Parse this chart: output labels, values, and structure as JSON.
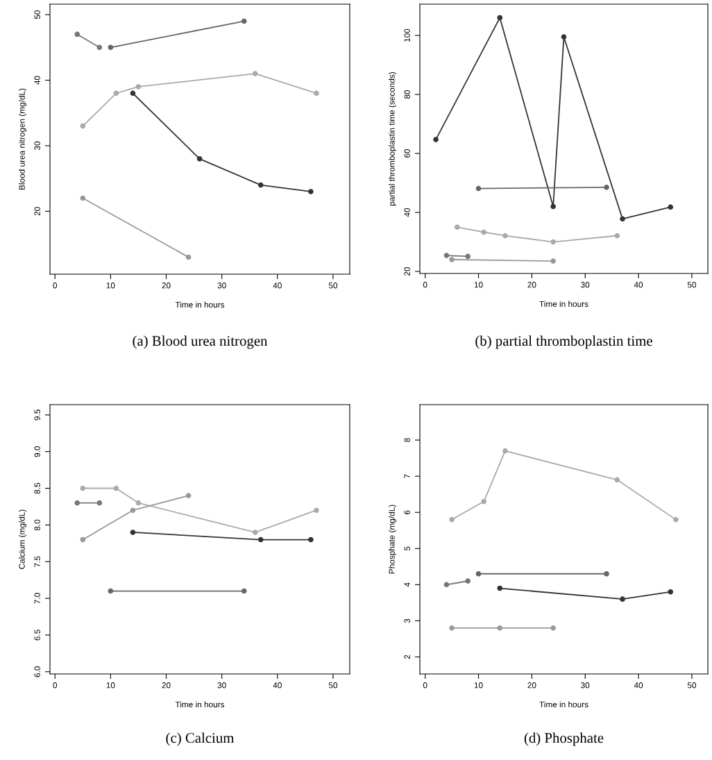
{
  "chart_data": [
    {
      "type": "line",
      "title": "(a) Blood urea nitrogen",
      "xlabel": "Time in hours",
      "ylabel": "Blood urea nitrogen (mg/dL)",
      "xlim": [
        -0.9,
        53
      ],
      "xticks": [
        0,
        10,
        20,
        30,
        40,
        50
      ],
      "ylim": [
        10.4,
        51.6
      ],
      "yticks": [
        20,
        30,
        40,
        50
      ],
      "grid": false,
      "legend": false,
      "marker": "circle",
      "line_style": "solid",
      "series": [
        {
          "color": "#333333",
          "x": [
            14,
            26,
            37,
            46
          ],
          "values": [
            38,
            28,
            24,
            23
          ]
        },
        {
          "color": "#777777",
          "x": [
            4,
            8
          ],
          "values": [
            47,
            45
          ]
        },
        {
          "color": "#666666",
          "x": [
            10,
            34
          ],
          "values": [
            45,
            49
          ]
        },
        {
          "color": "#aaaaaa",
          "x": [
            5,
            11,
            15,
            36,
            47
          ],
          "values": [
            33,
            38,
            39,
            41,
            38
          ]
        },
        {
          "color": "#999999",
          "x": [
            5,
            24
          ],
          "values": [
            22,
            13
          ]
        }
      ]
    },
    {
      "type": "line",
      "title": "(b) partial thromboplastin time",
      "xlabel": "Time in hours",
      "ylabel": "partial thromboplastin time (seconds)",
      "xlim": [
        -1,
        53
      ],
      "xticks": [
        0,
        10,
        20,
        30,
        40,
        50
      ],
      "ylim": [
        19.3,
        110.6
      ],
      "yticks": [
        20,
        40,
        60,
        80,
        100
      ],
      "grid": false,
      "legend": false,
      "marker": "circle",
      "line_style": "solid",
      "series": [
        {
          "color": "#333333",
          "x": [
            2,
            14,
            24,
            26,
            37,
            46
          ],
          "values": [
            64.7,
            106,
            42,
            99.5,
            37.8,
            41.8
          ]
        },
        {
          "color": "#666666",
          "x": [
            10,
            34
          ],
          "values": [
            48.1,
            48.5
          ]
        },
        {
          "color": "#aaaaaa",
          "x": [
            6,
            11,
            15,
            24,
            36
          ],
          "values": [
            35,
            33.3,
            32.1,
            30,
            32.1
          ]
        },
        {
          "color": "#777777",
          "x": [
            4,
            8
          ],
          "values": [
            25.4,
            25.1
          ]
        },
        {
          "color": "#999999",
          "x": [
            5,
            24
          ],
          "values": [
            24,
            23.5
          ]
        }
      ]
    },
    {
      "type": "line",
      "title": "(c) Calcium",
      "xlabel": "Time in hours",
      "ylabel": "Calcium (mg/dL)",
      "xlim": [
        -0.9,
        53
      ],
      "xticks": [
        0,
        10,
        20,
        30,
        40,
        50
      ],
      "ylim": [
        5.97,
        9.64
      ],
      "yticks": [
        {
          "value": 6,
          "label": "6.0"
        },
        6.5,
        {
          "value": 7,
          "label": "7.0"
        },
        7.5,
        {
          "value": 8,
          "label": "8.0"
        },
        8.5,
        {
          "value": 9,
          "label": "9.0"
        },
        9.5
      ],
      "grid": false,
      "legend": false,
      "marker": "circle",
      "line_style": "solid",
      "series": [
        {
          "color": "#aaaaaa",
          "x": [
            5,
            11,
            15,
            36,
            47
          ],
          "values": [
            8.5,
            8.5,
            8.3,
            7.9,
            8.2
          ]
        },
        {
          "color": "#777777",
          "x": [
            4,
            8
          ],
          "values": [
            8.3,
            8.3
          ]
        },
        {
          "color": "#999999",
          "x": [
            5,
            14,
            24
          ],
          "values": [
            7.8,
            8.2,
            8.4
          ]
        },
        {
          "color": "#333333",
          "x": [
            14,
            37,
            46
          ],
          "values": [
            7.9,
            7.8,
            7.8
          ]
        },
        {
          "color": "#666666",
          "x": [
            10,
            34
          ],
          "values": [
            7.1,
            7.1
          ]
        }
      ]
    },
    {
      "type": "line",
      "title": "(d) Phosphate",
      "xlabel": "Time in hours",
      "ylabel": "Phosphate (mg/dL)",
      "xlim": [
        -1,
        53
      ],
      "xticks": [
        0,
        10,
        20,
        30,
        40,
        50
      ],
      "ylim": [
        1.53,
        8.98
      ],
      "yticks": [
        2,
        3,
        4,
        5,
        6,
        7,
        8
      ],
      "grid": false,
      "legend": false,
      "marker": "circle",
      "line_style": "solid",
      "series": [
        {
          "color": "#aaaaaa",
          "x": [
            5,
            11,
            15,
            36,
            47
          ],
          "values": [
            5.8,
            6.3,
            7.7,
            6.9,
            5.8
          ]
        },
        {
          "color": "#666666",
          "x": [
            10,
            34
          ],
          "values": [
            4.3,
            4.3
          ]
        },
        {
          "color": "#777777",
          "x": [
            4,
            8
          ],
          "values": [
            4.0,
            4.1
          ]
        },
        {
          "color": "#333333",
          "x": [
            14,
            37,
            46
          ],
          "values": [
            3.9,
            3.6,
            3.8
          ]
        },
        {
          "color": "#999999",
          "x": [
            5,
            14,
            24
          ],
          "values": [
            2.8,
            2.8,
            2.8
          ]
        }
      ]
    }
  ]
}
